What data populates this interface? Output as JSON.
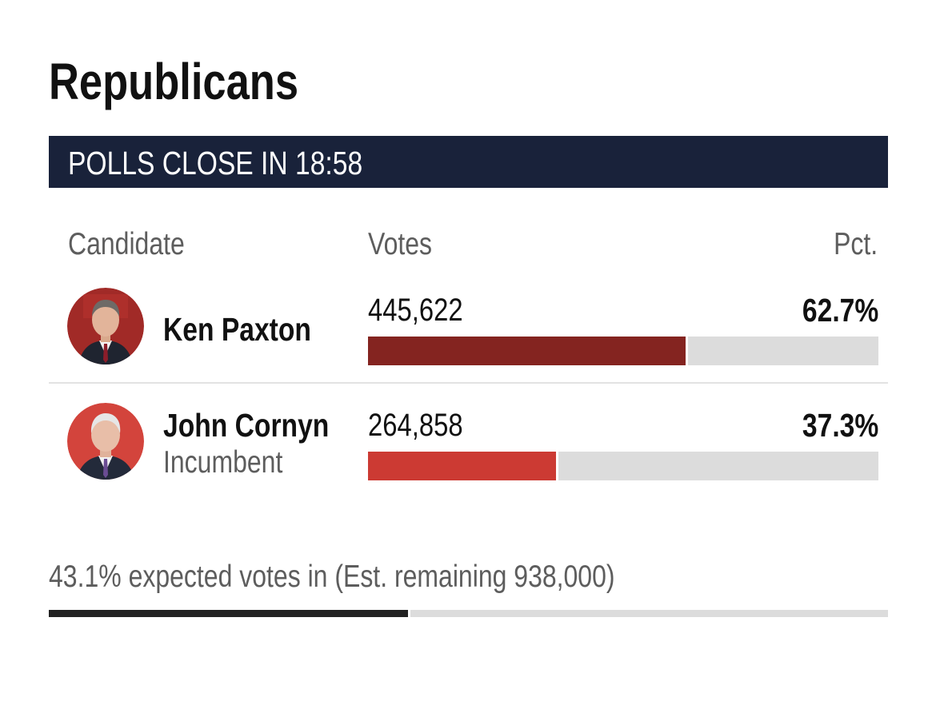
{
  "race": {
    "party_title": "Republicans",
    "polls_banner": "POLLS CLOSE IN 18:58"
  },
  "table": {
    "headers": {
      "candidate": "Candidate",
      "votes": "Votes",
      "pct": "Pct."
    },
    "candidates": [
      {
        "name": "Ken Paxton",
        "subtitle": "",
        "votes": "445,622",
        "pct": "62.7%",
        "share": 0.627,
        "bar_color": "#842420",
        "avatar_bg": "#a12a27"
      },
      {
        "name": "John Cornyn",
        "subtitle": "Incumbent",
        "votes": "264,858",
        "pct": "37.3%",
        "share": 0.373,
        "bar_color": "#cc3a33",
        "avatar_bg": "#d3443c"
      }
    ]
  },
  "expected": {
    "text": "43.1% expected votes in (Est. remaining 938,000)",
    "share": 0.431,
    "bar_color": "#222222"
  },
  "colors": {
    "banner_bg": "#19223a",
    "track": "#dcdcdc"
  },
  "icons": {
    "avatar_1": "candidate-photo-ken-paxton",
    "avatar_2": "candidate-photo-john-cornyn"
  }
}
